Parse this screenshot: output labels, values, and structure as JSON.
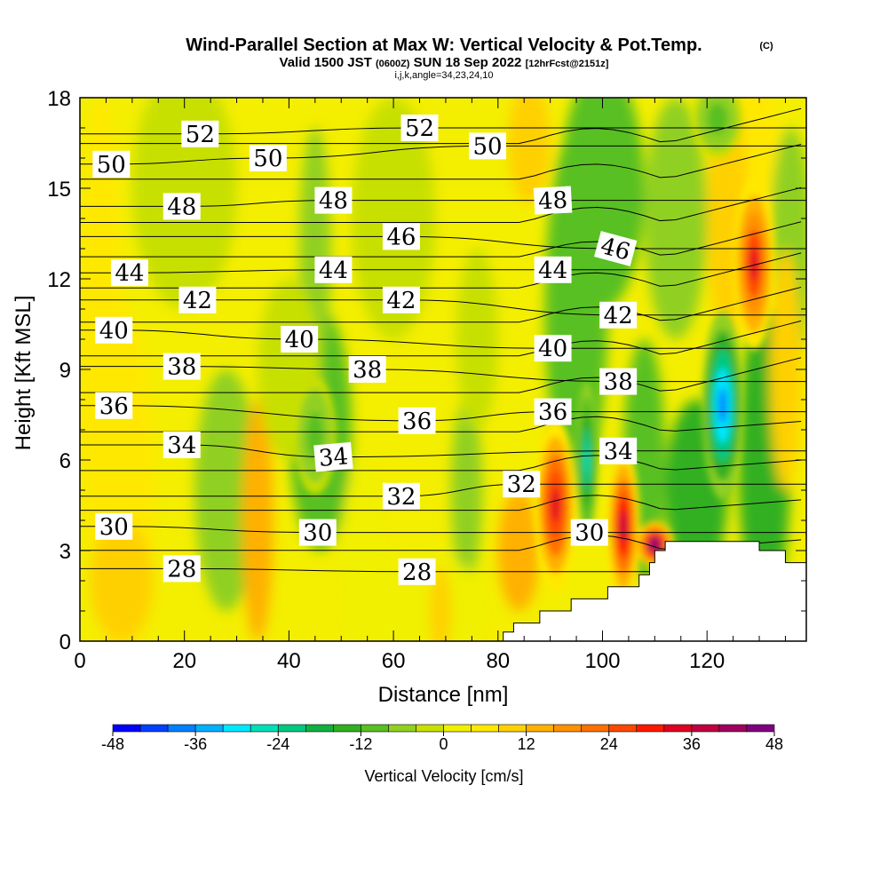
{
  "title": "Wind-Parallel Section at Max W: Vertical Velocity & Pot.Temp.",
  "title_mark": "(C)",
  "subtitle_a": "Valid 1500 JST",
  "subtitle_b": "(0600Z)",
  "subtitle_c": "SUN 18 Sep 2022",
  "subtitle_d": "[12hrFcst@2151z]",
  "subtitle_line3": "i,j,k,angle=34,23,24,10",
  "colorbar_label": "Vertical Velocity [cm/s]",
  "colorbar_ticks": [
    "-48",
    "-36",
    "-24",
    "-12",
    "0",
    "12",
    "24",
    "36",
    "48"
  ],
  "colorbar_colors": [
    "#0000ff",
    "#0040ff",
    "#0080ff",
    "#00b0ff",
    "#00e8ff",
    "#00e0b8",
    "#00c880",
    "#10b040",
    "#30b020",
    "#58c020",
    "#90d020",
    "#c8e000",
    "#f0f000",
    "#ffe800",
    "#ffd000",
    "#ffb000",
    "#ff9000",
    "#ff7000",
    "#ff4800",
    "#ff1800",
    "#e00020",
    "#c00040",
    "#a00060",
    "#800080"
  ],
  "chart_data": {
    "type": "heatmap",
    "xlabel": "Distance [nm]",
    "ylabel": "Height [Kft MSL]",
    "xlim": [
      0,
      139
    ],
    "ylim": [
      0,
      18
    ],
    "x_ticks": [
      "0",
      "20",
      "40",
      "60",
      "80",
      "100",
      "120"
    ],
    "y_ticks": [
      "0",
      "3",
      "6",
      "9",
      "12",
      "15",
      "18"
    ],
    "shading_variable": "Vertical Velocity [cm/s]",
    "shading_range": [
      -48,
      48
    ],
    "contour_variable": "Potential temperature",
    "contour_labels": [
      {
        "text": "52",
        "x": 23,
        "y": 16.8,
        "rot": 0
      },
      {
        "text": "52",
        "x": 65,
        "y": 17.0,
        "rot": 0
      },
      {
        "text": "50",
        "x": 6,
        "y": 15.8,
        "rot": 0
      },
      {
        "text": "50",
        "x": 36,
        "y": 16.0,
        "rot": 0
      },
      {
        "text": "50",
        "x": 78,
        "y": 16.4,
        "rot": 0
      },
      {
        "text": "48",
        "x": 19.5,
        "y": 14.4,
        "rot": 0
      },
      {
        "text": "48",
        "x": 48.5,
        "y": 14.6,
        "rot": 0
      },
      {
        "text": "48",
        "x": 90.5,
        "y": 14.6,
        "rot": -3
      },
      {
        "text": "46",
        "x": 61.5,
        "y": 13.4,
        "rot": 0
      },
      {
        "text": "46",
        "x": 102.5,
        "y": 13.0,
        "rot": 15
      },
      {
        "text": "44",
        "x": 9.5,
        "y": 12.2,
        "rot": 0
      },
      {
        "text": "44",
        "x": 48.5,
        "y": 12.3,
        "rot": 0
      },
      {
        "text": "44",
        "x": 90.5,
        "y": 12.3,
        "rot": 0
      },
      {
        "text": "42",
        "x": 22.5,
        "y": 11.3,
        "rot": 0
      },
      {
        "text": "42",
        "x": 61.5,
        "y": 11.3,
        "rot": 0
      },
      {
        "text": "42",
        "x": 103,
        "y": 10.8,
        "rot": 0
      },
      {
        "text": "40",
        "x": 6.5,
        "y": 10.3,
        "rot": 0
      },
      {
        "text": "40",
        "x": 42,
        "y": 10.0,
        "rot": 0
      },
      {
        "text": "40",
        "x": 90.5,
        "y": 9.7,
        "rot": 0
      },
      {
        "text": "38",
        "x": 19.5,
        "y": 9.1,
        "rot": 0
      },
      {
        "text": "38",
        "x": 55,
        "y": 9.0,
        "rot": 0
      },
      {
        "text": "38",
        "x": 103,
        "y": 8.6,
        "rot": 0
      },
      {
        "text": "36",
        "x": 6.5,
        "y": 7.8,
        "rot": 0
      },
      {
        "text": "36",
        "x": 64.5,
        "y": 7.3,
        "rot": 0
      },
      {
        "text": "36",
        "x": 90.5,
        "y": 7.6,
        "rot": 0
      },
      {
        "text": "34",
        "x": 19.5,
        "y": 6.5,
        "rot": 0
      },
      {
        "text": "34",
        "x": 48.5,
        "y": 6.1,
        "rot": -5
      },
      {
        "text": "34",
        "x": 103,
        "y": 6.3,
        "rot": 0
      },
      {
        "text": "32",
        "x": 61.5,
        "y": 4.8,
        "rot": 0
      },
      {
        "text": "32",
        "x": 84.5,
        "y": 5.2,
        "rot": 0
      },
      {
        "text": "30",
        "x": 6.5,
        "y": 3.8,
        "rot": 0
      },
      {
        "text": "30",
        "x": 45.5,
        "y": 3.6,
        "rot": 0
      },
      {
        "text": "30",
        "x": 97.5,
        "y": 3.6,
        "rot": 0
      },
      {
        "text": "28",
        "x": 19.5,
        "y": 2.4,
        "rot": 0
      },
      {
        "text": "28",
        "x": 64.5,
        "y": 2.3,
        "rot": 0
      }
    ],
    "velocity_features": [
      {
        "kind": "updraft",
        "x": 91,
        "y": 4.5,
        "w_peak": 34
      },
      {
        "kind": "updraft",
        "x": 104,
        "y": 3.8,
        "w_peak": 38
      },
      {
        "kind": "updraft",
        "x": 110,
        "y": 3.2,
        "w_peak": 46
      },
      {
        "kind": "updraft",
        "x": 129,
        "y": 12.5,
        "w_peak": 32
      },
      {
        "kind": "downdraft",
        "x": 97,
        "y": 6.0,
        "w_peak": -26
      },
      {
        "kind": "downdraft",
        "x": 123,
        "y": 7.8,
        "w_peak": -40
      },
      {
        "kind": "downdraft",
        "x": 45,
        "y": 6.8,
        "w_peak": -12
      },
      {
        "kind": "downdraft",
        "x": 122,
        "y": 17.3,
        "w_peak": -12
      }
    ],
    "terrain_profile": [
      [
        81,
        0
      ],
      [
        81,
        0.3
      ],
      [
        83,
        0.3
      ],
      [
        83,
        0.6
      ],
      [
        88,
        0.6
      ],
      [
        88,
        1.0
      ],
      [
        94,
        1.0
      ],
      [
        94,
        1.4
      ],
      [
        101,
        1.4
      ],
      [
        101,
        1.8
      ],
      [
        107,
        1.8
      ],
      [
        107,
        2.2
      ],
      [
        109,
        2.2
      ],
      [
        109,
        2.6
      ],
      [
        110,
        2.6
      ],
      [
        110,
        3.0
      ],
      [
        112,
        3.0
      ],
      [
        112,
        3.3
      ],
      [
        130,
        3.3
      ],
      [
        130,
        3.0
      ],
      [
        135,
        3.0
      ],
      [
        135,
        2.6
      ],
      [
        139,
        2.6
      ],
      [
        139,
        0
      ]
    ]
  }
}
